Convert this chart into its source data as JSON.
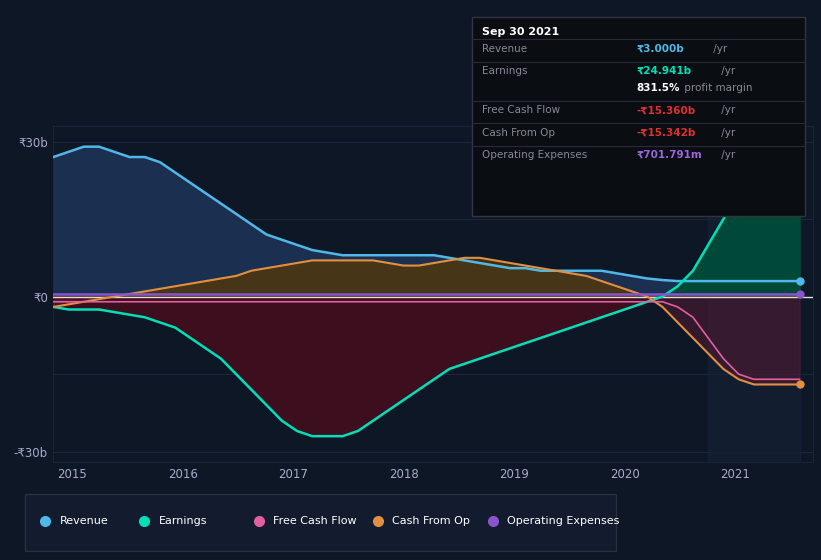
{
  "bg_color": "#0e1726",
  "plot_bg": "#0e1726",
  "highlight_bg": "#182238",
  "y_label_30b": "₹30b",
  "y_label_0": "₹0",
  "y_label_neg30b": "-₹30b",
  "x_labels": [
    "2015",
    "2016",
    "2017",
    "2018",
    "2019",
    "2020",
    "2021"
  ],
  "colors": {
    "revenue": "#4fb8e8",
    "earnings": "#00e0b8",
    "free_cash_flow": "#e060a0",
    "cash_from_op": "#e09040",
    "operating_expenses": "#8855cc",
    "zero_line": "#ffffff",
    "revenue_fill": "#1a3050",
    "earnings_fill_neg": "#4a1520",
    "earnings_fill_pos": "#004840",
    "grid_line": "#1e2a40"
  },
  "tooltip": {
    "date": "Sep 30 2021",
    "revenue_label": "Revenue",
    "revenue_val": "₹3.000b",
    "revenue_suffix": " /yr",
    "earnings_label": "Earnings",
    "earnings_val": "₹24.941b",
    "earnings_suffix": " /yr",
    "profit_margin": "831.5%",
    "profit_margin_text": " profit margin",
    "fcf_label": "Free Cash Flow",
    "fcf_val": "-₹15.360b",
    "fcf_suffix": " /yr",
    "cfop_label": "Cash From Op",
    "cfop_val": "-₹15.342b",
    "cfop_suffix": " /yr",
    "opex_label": "Operating Expenses",
    "opex_val": "₹701.791m",
    "opex_suffix": " /yr"
  },
  "legend_labels": [
    "Revenue",
    "Earnings",
    "Free Cash Flow",
    "Cash From Op",
    "Operating Expenses"
  ],
  "legend_colors": [
    "#4fb8e8",
    "#00e0b8",
    "#e060a0",
    "#e09040",
    "#8855cc"
  ]
}
